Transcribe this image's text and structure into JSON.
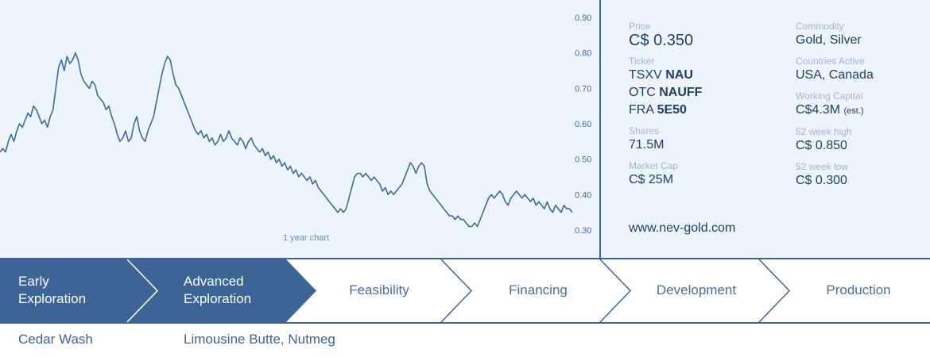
{
  "chart": {
    "caption": "1 year chart",
    "y_ticks": [
      "0.90",
      "0.80",
      "0.70",
      "0.60",
      "0.50",
      "0.40",
      "0.30"
    ]
  },
  "chart_data": {
    "type": "line",
    "title": "1 year chart",
    "xlabel": "",
    "ylabel": "",
    "ylim": [
      0.25,
      0.92
    ],
    "y_ticks": [
      0.9,
      0.8,
      0.7,
      0.6,
      0.5,
      0.4,
      0.3
    ],
    "series": [
      {
        "values": [
          0.52,
          0.53,
          0.52,
          0.55,
          0.57,
          0.55,
          0.58,
          0.6,
          0.59,
          0.61,
          0.63,
          0.62,
          0.65,
          0.64,
          0.62,
          0.6,
          0.61,
          0.59,
          0.62,
          0.64,
          0.7,
          0.76,
          0.78,
          0.75,
          0.79,
          0.77,
          0.78,
          0.8,
          0.78,
          0.74,
          0.72,
          0.71,
          0.7,
          0.72,
          0.71,
          0.68,
          0.67,
          0.66,
          0.64,
          0.65,
          0.62,
          0.6,
          0.57,
          0.55,
          0.56,
          0.58,
          0.55,
          0.56,
          0.6,
          0.62,
          0.58,
          0.56,
          0.55,
          0.58,
          0.6,
          0.62,
          0.66,
          0.7,
          0.74,
          0.77,
          0.79,
          0.78,
          0.74,
          0.71,
          0.7,
          0.68,
          0.66,
          0.64,
          0.62,
          0.6,
          0.58,
          0.57,
          0.58,
          0.56,
          0.57,
          0.55,
          0.56,
          0.54,
          0.55,
          0.57,
          0.55,
          0.56,
          0.58,
          0.56,
          0.55,
          0.54,
          0.56,
          0.55,
          0.53,
          0.55,
          0.56,
          0.54,
          0.53,
          0.52,
          0.53,
          0.51,
          0.52,
          0.5,
          0.51,
          0.49,
          0.5,
          0.48,
          0.49,
          0.47,
          0.48,
          0.46,
          0.47,
          0.45,
          0.46,
          0.45,
          0.44,
          0.45,
          0.43,
          0.44,
          0.42,
          0.41,
          0.4,
          0.39,
          0.38,
          0.37,
          0.36,
          0.35,
          0.36,
          0.35,
          0.36,
          0.39,
          0.42,
          0.45,
          0.46,
          0.46,
          0.45,
          0.46,
          0.45,
          0.44,
          0.45,
          0.44,
          0.43,
          0.41,
          0.42,
          0.4,
          0.41,
          0.4,
          0.41,
          0.42,
          0.43,
          0.45,
          0.47,
          0.49,
          0.48,
          0.46,
          0.48,
          0.49,
          0.48,
          0.43,
          0.41,
          0.4,
          0.39,
          0.38,
          0.37,
          0.36,
          0.35,
          0.34,
          0.34,
          0.33,
          0.34,
          0.33,
          0.33,
          0.32,
          0.31,
          0.31,
          0.32,
          0.31,
          0.33,
          0.35,
          0.37,
          0.39,
          0.4,
          0.39,
          0.4,
          0.41,
          0.4,
          0.38,
          0.37,
          0.39,
          0.4,
          0.41,
          0.4,
          0.39,
          0.4,
          0.39,
          0.38,
          0.39,
          0.37,
          0.38,
          0.37,
          0.36,
          0.38,
          0.36,
          0.35,
          0.37,
          0.36,
          0.35,
          0.37,
          0.36,
          0.36,
          0.35
        ]
      }
    ]
  },
  "info": {
    "price_label": "Price",
    "price_value": "C$ 0.350",
    "ticker_label": "Ticker",
    "tickers": [
      {
        "exchange": "TSXV",
        "symbol": "NAU"
      },
      {
        "exchange": "OTC",
        "symbol": "NAUFF"
      },
      {
        "exchange": "FRA",
        "symbol": "5E50"
      }
    ],
    "shares_label": "Shares",
    "shares_value": "71.5M",
    "market_cap_label": "Market Cap",
    "market_cap_value": "C$ 25M",
    "website": "www.nev-gold.com",
    "commodity_label": "Commodity",
    "commodity_value": "Gold, Silver",
    "countries_label": "Countries Active",
    "countries_value": "USA, Canada",
    "working_capital_label": "Working Capital",
    "working_capital_value": "C$4.3M",
    "working_capital_note": "(est.)",
    "high_label": "52 week high",
    "high_value": "C$ 0.850",
    "low_label": "52 week low",
    "low_value": "C$ 0.300"
  },
  "stages": [
    {
      "line1": "Early",
      "line2": "Exploration",
      "active": true
    },
    {
      "line1": "Advanced",
      "line2": "Exploration",
      "active": true
    },
    {
      "line1": "Feasibility",
      "line2": "",
      "active": false
    },
    {
      "line1": "Financing",
      "line2": "",
      "active": false
    },
    {
      "line1": "Development",
      "line2": "",
      "active": false
    },
    {
      "line1": "Production",
      "line2": "",
      "active": false
    }
  ],
  "projects": {
    "early": "Cedar Wash",
    "advanced": "Limousine Butte, Nutmeg"
  },
  "colors": {
    "accent": "#3c6496",
    "panel_bg": "#edf4fc",
    "line": "#3f6a9c"
  }
}
